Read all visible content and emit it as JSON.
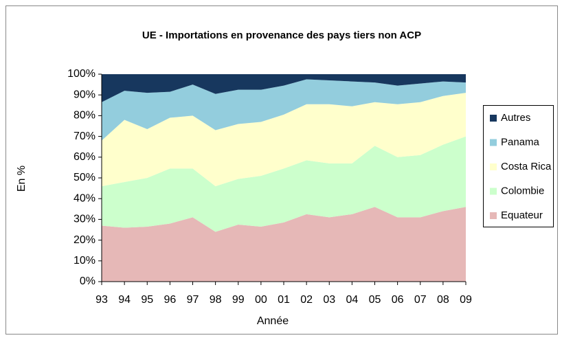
{
  "chart_data": {
    "type": "stacked_area_100",
    "title": "UE - Importations en provenance des pays tiers non ACP",
    "xlabel": "Année",
    "ylabel": "En %",
    "categories": [
      "93",
      "94",
      "95",
      "96",
      "97",
      "98",
      "99",
      "00",
      "01",
      "02",
      "03",
      "04",
      "05",
      "06",
      "07",
      "08",
      "09"
    ],
    "series": [
      {
        "name": "Equateur",
        "color": "#e6b8b7",
        "values": [
          27,
          26,
          26.5,
          28,
          31,
          24,
          27.5,
          26.5,
          28.5,
          32.5,
          31,
          32.5,
          36,
          31,
          31,
          34,
          36
        ]
      },
      {
        "name": "Colombie",
        "color": "#ccffcc",
        "values": [
          19,
          22,
          23.5,
          26.5,
          23.5,
          22,
          22,
          24.5,
          26,
          26,
          26,
          24.5,
          29.5,
          29,
          30,
          32,
          34
        ]
      },
      {
        "name": "Costa Rica",
        "color": "#ffffcc",
        "values": [
          22,
          30,
          23.5,
          24.5,
          25.5,
          27,
          26.5,
          26,
          26,
          27,
          28.5,
          27.5,
          21,
          25.5,
          25.5,
          23.5,
          21
        ]
      },
      {
        "name": "Panama",
        "color": "#93cddd",
        "values": [
          18.5,
          14,
          17.5,
          12.5,
          15,
          17.5,
          16.5,
          15.5,
          14,
          12,
          11.5,
          12,
          9.5,
          9,
          9,
          7,
          5
        ]
      },
      {
        "name": "Autres",
        "color": "#17375e",
        "values": [
          13.5,
          8,
          9,
          8.5,
          5,
          9.5,
          7.5,
          7.5,
          5.5,
          2.5,
          3,
          3.5,
          4,
          5.5,
          4.5,
          3.5,
          4
        ]
      }
    ],
    "ylim": [
      0,
      100
    ],
    "yticks": [
      {
        "value": 0,
        "label": "0%"
      },
      {
        "value": 10,
        "label": "10%"
      },
      {
        "value": 20,
        "label": "20%"
      },
      {
        "value": 30,
        "label": "30%"
      },
      {
        "value": 40,
        "label": "40%"
      },
      {
        "value": 50,
        "label": "50%"
      },
      {
        "value": 60,
        "label": "60%"
      },
      {
        "value": 70,
        "label": "70%"
      },
      {
        "value": 80,
        "label": "80%"
      },
      {
        "value": 90,
        "label": "90%"
      },
      {
        "value": 100,
        "label": "100%"
      }
    ],
    "legend": "right"
  }
}
